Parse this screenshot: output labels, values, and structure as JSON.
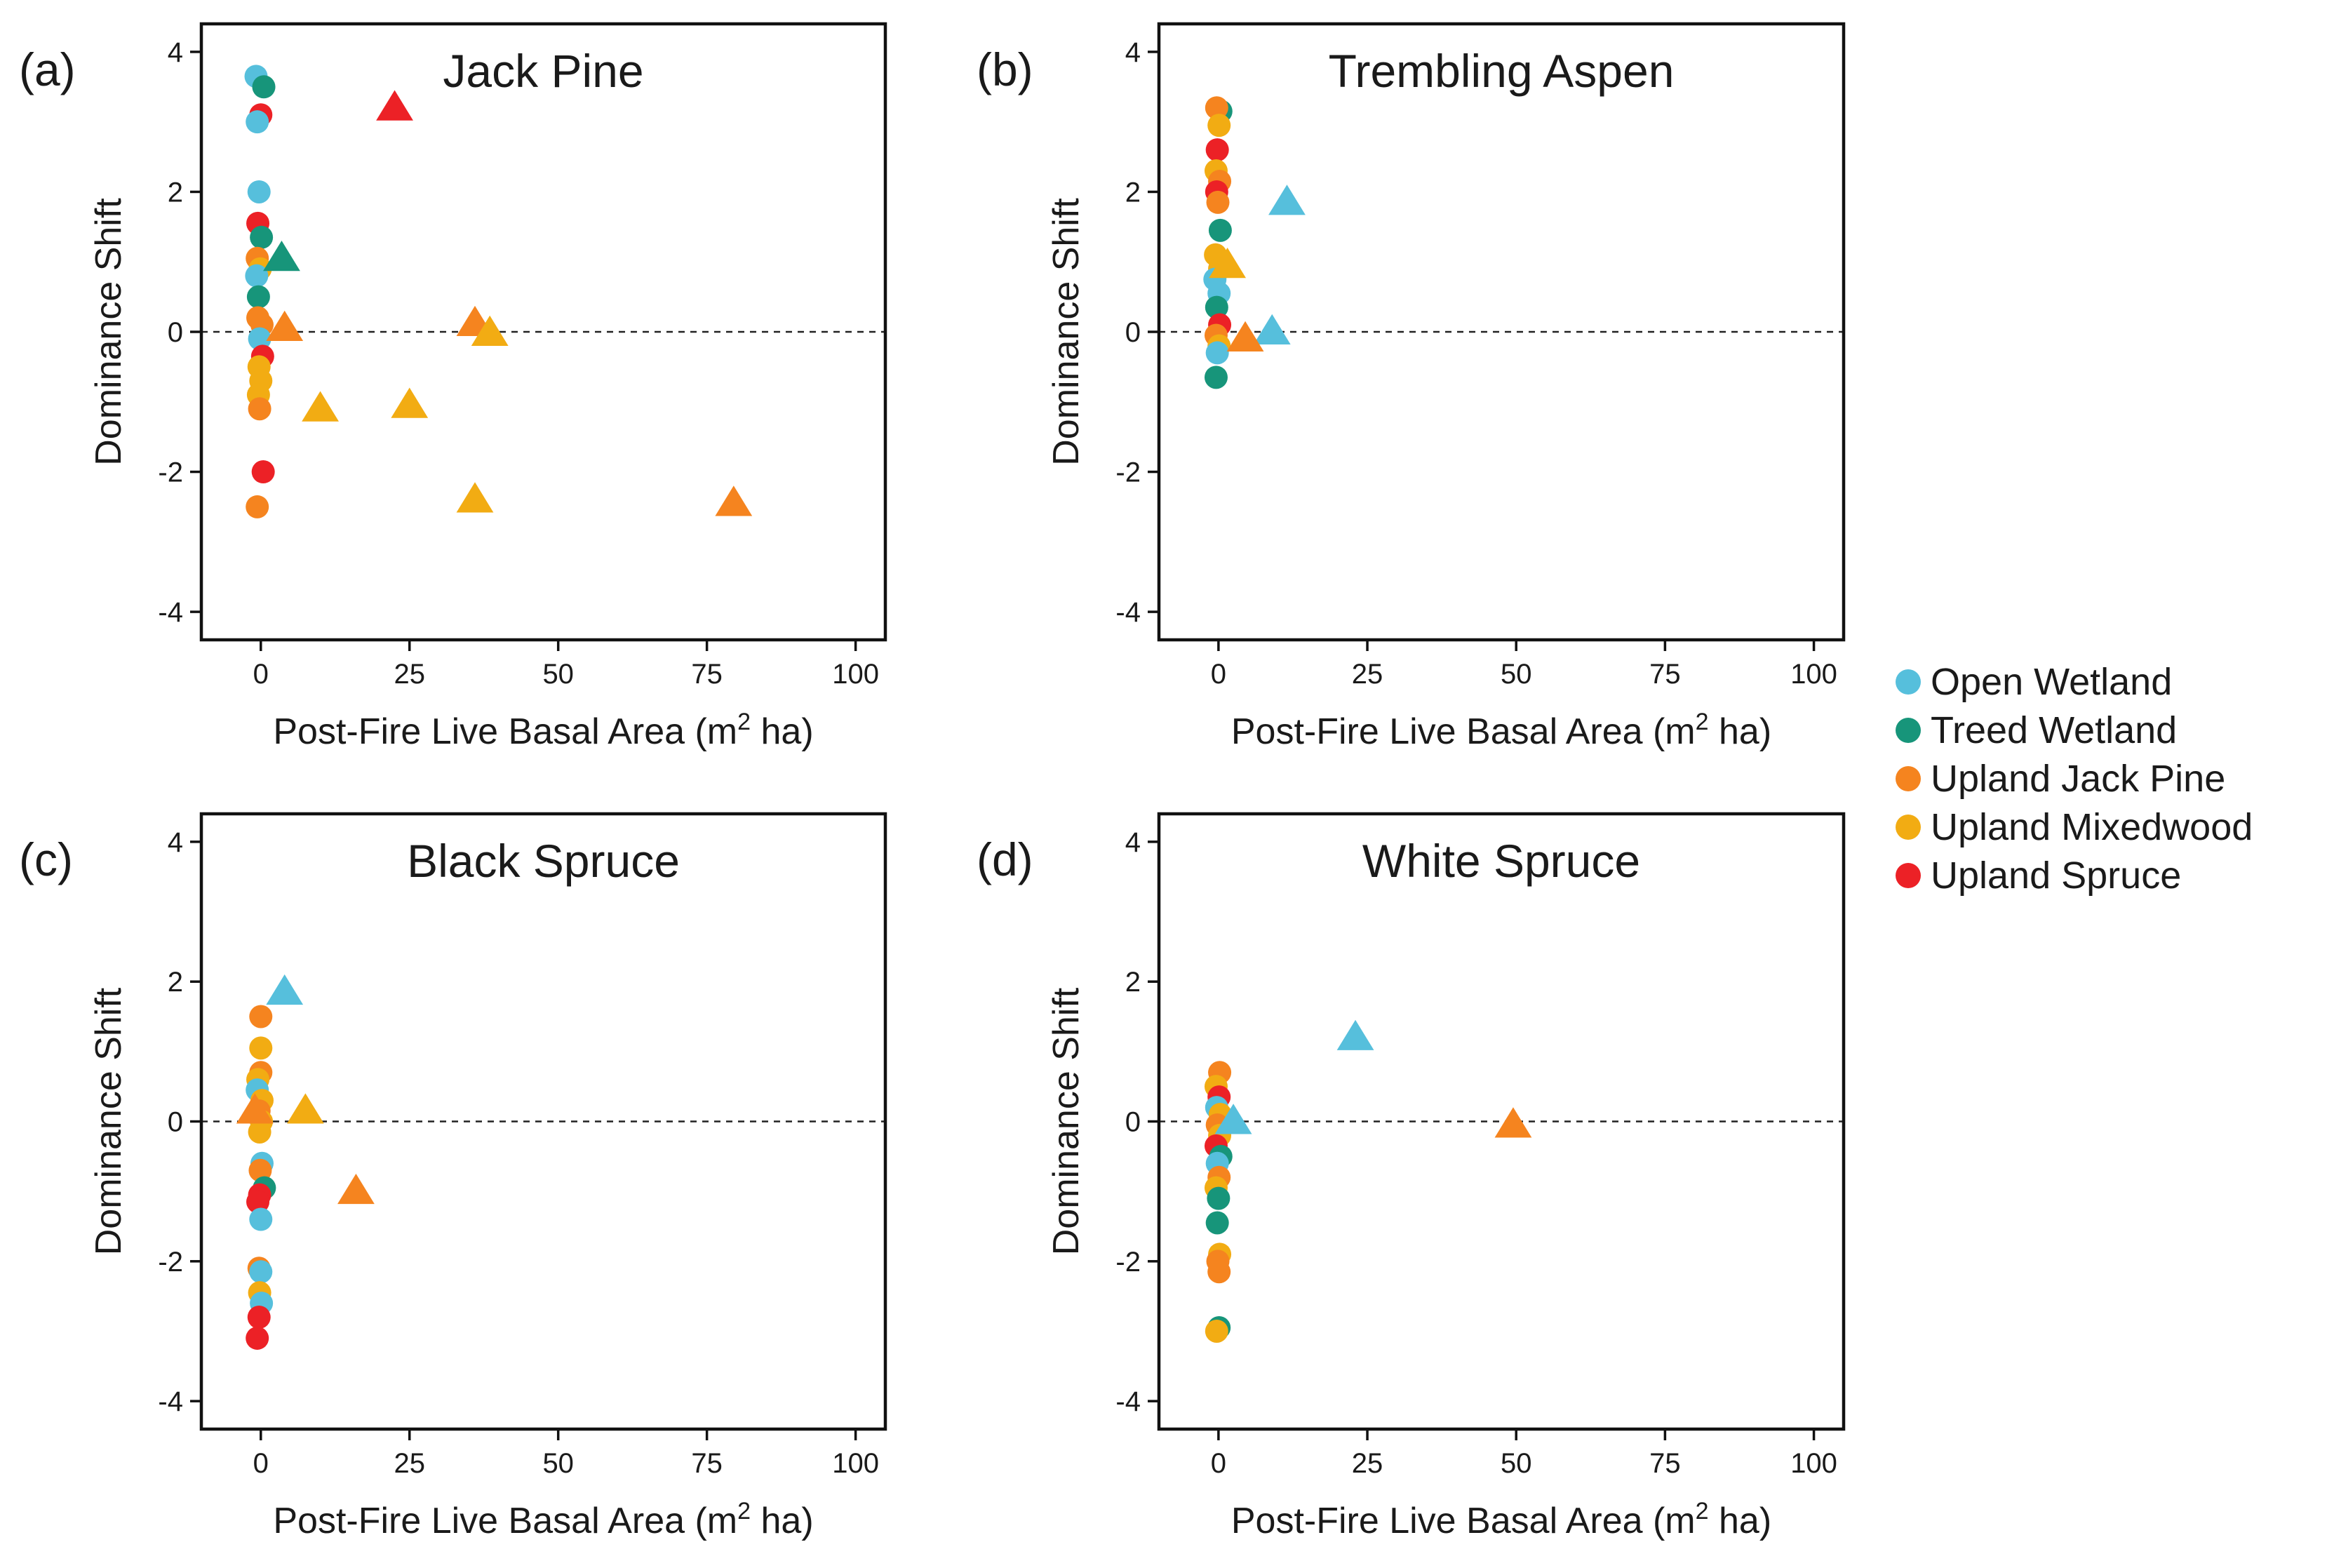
{
  "figure": {
    "legend": [
      {
        "label": "Open Wetland",
        "color": "#56bfdc"
      },
      {
        "label": "Treed Wetland",
        "color": "#17957a"
      },
      {
        "label": "Upland Jack Pine",
        "color": "#f5841f"
      },
      {
        "label": "Upland Mixedwood",
        "color": "#f2ac13"
      },
      {
        "label": "Upland Spruce",
        "color": "#ec2126"
      }
    ]
  },
  "chart_data": [
    {
      "type": "scatter",
      "panel": "(a)",
      "title": "Jack Pine",
      "xlabel": "Post-Fire Live Basal Area (m",
      "xlabel_sup": "2",
      "xlabel_end": " ha)",
      "ylabel": "Dominance Shift",
      "xlim": [
        -10,
        105
      ],
      "ylim": [
        -4.4,
        4.4
      ],
      "xticks": [
        0,
        25,
        50,
        75,
        100
      ],
      "yticks": [
        -4,
        -2,
        0,
        2,
        4
      ],
      "reference_line_y": 0,
      "points": [
        {
          "x": -0.8,
          "y": 3.65,
          "group": 0,
          "shape": "circle"
        },
        {
          "x": 0.5,
          "y": 3.5,
          "group": 1,
          "shape": "circle"
        },
        {
          "x": 0,
          "y": 3.1,
          "group": 4,
          "shape": "circle"
        },
        {
          "x": -0.6,
          "y": 3.0,
          "group": 0,
          "shape": "circle"
        },
        {
          "x": -0.3,
          "y": 2.0,
          "group": 0,
          "shape": "circle"
        },
        {
          "x": -0.5,
          "y": 1.55,
          "group": 4,
          "shape": "circle"
        },
        {
          "x": 0.1,
          "y": 1.35,
          "group": 1,
          "shape": "circle"
        },
        {
          "x": -0.6,
          "y": 1.05,
          "group": 2,
          "shape": "circle"
        },
        {
          "x": -0.1,
          "y": 0.9,
          "group": 3,
          "shape": "circle"
        },
        {
          "x": -0.7,
          "y": 0.8,
          "group": 0,
          "shape": "circle"
        },
        {
          "x": -0.4,
          "y": 0.5,
          "group": 1,
          "shape": "circle"
        },
        {
          "x": -0.5,
          "y": 0.2,
          "group": 2,
          "shape": "circle"
        },
        {
          "x": 0.2,
          "y": 0.1,
          "group": 2,
          "shape": "circle"
        },
        {
          "x": -0.2,
          "y": -0.1,
          "group": 0,
          "shape": "circle"
        },
        {
          "x": 0.3,
          "y": -0.35,
          "group": 4,
          "shape": "circle"
        },
        {
          "x": -0.3,
          "y": -0.5,
          "group": 3,
          "shape": "circle"
        },
        {
          "x": 0,
          "y": -0.7,
          "group": 3,
          "shape": "circle"
        },
        {
          "x": -0.4,
          "y": -0.9,
          "group": 3,
          "shape": "circle"
        },
        {
          "x": -0.2,
          "y": -1.1,
          "group": 2,
          "shape": "circle"
        },
        {
          "x": 0.4,
          "y": -2.0,
          "group": 4,
          "shape": "circle"
        },
        {
          "x": -0.6,
          "y": -2.5,
          "group": 2,
          "shape": "circle"
        },
        {
          "x": 22.5,
          "y": 3.2,
          "group": 4,
          "shape": "triangle"
        },
        {
          "x": 3.5,
          "y": 1.05,
          "group": 1,
          "shape": "triangle"
        },
        {
          "x": 4,
          "y": 0.05,
          "group": 2,
          "shape": "triangle"
        },
        {
          "x": 36,
          "y": 0.12,
          "group": 2,
          "shape": "triangle"
        },
        {
          "x": 38.5,
          "y": -0.02,
          "group": 3,
          "shape": "triangle"
        },
        {
          "x": 10,
          "y": -1.1,
          "group": 3,
          "shape": "triangle"
        },
        {
          "x": 25,
          "y": -1.05,
          "group": 3,
          "shape": "triangle"
        },
        {
          "x": 36,
          "y": -2.4,
          "group": 3,
          "shape": "triangle"
        },
        {
          "x": 79.5,
          "y": -2.45,
          "group": 2,
          "shape": "triangle"
        }
      ]
    },
    {
      "type": "scatter",
      "panel": "(b)",
      "title": "Trembling Aspen",
      "xlabel": "Post-Fire Live Basal Area (m",
      "xlabel_sup": "2",
      "xlabel_end": " ha)",
      "ylabel": "Dominance Shift",
      "xlim": [
        -10,
        105
      ],
      "ylim": [
        -4.4,
        4.4
      ],
      "xticks": [
        0,
        25,
        50,
        75,
        100
      ],
      "yticks": [
        -4,
        -2,
        0,
        2,
        4
      ],
      "reference_line_y": 0,
      "points": [
        {
          "x": 0.4,
          "y": 3.15,
          "group": 1,
          "shape": "circle"
        },
        {
          "x": -0.3,
          "y": 3.2,
          "group": 2,
          "shape": "circle"
        },
        {
          "x": 0.1,
          "y": 2.95,
          "group": 3,
          "shape": "circle"
        },
        {
          "x": -0.2,
          "y": 2.6,
          "group": 4,
          "shape": "circle"
        },
        {
          "x": -0.4,
          "y": 2.3,
          "group": 3,
          "shape": "circle"
        },
        {
          "x": 0.2,
          "y": 2.15,
          "group": 2,
          "shape": "circle"
        },
        {
          "x": -0.3,
          "y": 2.0,
          "group": 4,
          "shape": "circle"
        },
        {
          "x": -0.1,
          "y": 1.85,
          "group": 2,
          "shape": "circle"
        },
        {
          "x": 0.3,
          "y": 1.45,
          "group": 1,
          "shape": "circle"
        },
        {
          "x": -0.5,
          "y": 1.1,
          "group": 3,
          "shape": "circle"
        },
        {
          "x": 0.2,
          "y": 0.9,
          "group": 3,
          "shape": "circle"
        },
        {
          "x": -0.6,
          "y": 0.75,
          "group": 0,
          "shape": "circle"
        },
        {
          "x": 0.1,
          "y": 0.55,
          "group": 0,
          "shape": "circle"
        },
        {
          "x": -0.3,
          "y": 0.35,
          "group": 1,
          "shape": "circle"
        },
        {
          "x": 0.2,
          "y": 0.1,
          "group": 4,
          "shape": "circle"
        },
        {
          "x": -0.4,
          "y": -0.05,
          "group": 2,
          "shape": "circle"
        },
        {
          "x": 0.1,
          "y": -0.2,
          "group": 3,
          "shape": "circle"
        },
        {
          "x": -0.2,
          "y": -0.3,
          "group": 0,
          "shape": "circle"
        },
        {
          "x": -0.4,
          "y": -0.65,
          "group": 1,
          "shape": "circle"
        },
        {
          "x": 11.5,
          "y": 1.85,
          "group": 0,
          "shape": "triangle"
        },
        {
          "x": 1.5,
          "y": 0.95,
          "group": 3,
          "shape": "triangle"
        },
        {
          "x": 9,
          "y": 0.0,
          "group": 0,
          "shape": "triangle"
        },
        {
          "x": 4.5,
          "y": -0.1,
          "group": 2,
          "shape": "triangle"
        }
      ]
    },
    {
      "type": "scatter",
      "panel": "(c)",
      "title": "Black Spruce",
      "xlabel": "Post-Fire Live Basal Area (m",
      "xlabel_sup": "2",
      "xlabel_end": " ha)",
      "ylabel": "Dominance Shift",
      "xlim": [
        -10,
        105
      ],
      "ylim": [
        -4.4,
        4.4
      ],
      "xticks": [
        0,
        25,
        50,
        75,
        100
      ],
      "yticks": [
        -4,
        -2,
        0,
        2,
        4
      ],
      "reference_line_y": 0,
      "points": [
        {
          "x": 0,
          "y": 1.5,
          "group": 2,
          "shape": "circle"
        },
        {
          "x": 0,
          "y": 1.05,
          "group": 3,
          "shape": "circle"
        },
        {
          "x": 0,
          "y": 0.7,
          "group": 2,
          "shape": "circle"
        },
        {
          "x": -0.5,
          "y": 0.6,
          "group": 3,
          "shape": "circle"
        },
        {
          "x": -0.6,
          "y": 0.45,
          "group": 0,
          "shape": "circle"
        },
        {
          "x": 0.2,
          "y": 0.3,
          "group": 3,
          "shape": "circle"
        },
        {
          "x": -0.3,
          "y": 0.15,
          "group": 2,
          "shape": "circle"
        },
        {
          "x": 0.1,
          "y": 0.0,
          "group": 3,
          "shape": "circle"
        },
        {
          "x": -0.2,
          "y": -0.15,
          "group": 3,
          "shape": "circle"
        },
        {
          "x": 0.2,
          "y": -0.6,
          "group": 0,
          "shape": "circle"
        },
        {
          "x": -0.1,
          "y": -0.7,
          "group": 2,
          "shape": "circle"
        },
        {
          "x": 0.6,
          "y": -0.95,
          "group": 1,
          "shape": "circle"
        },
        {
          "x": -0.2,
          "y": -1.05,
          "group": 4,
          "shape": "circle"
        },
        {
          "x": -0.5,
          "y": -1.15,
          "group": 4,
          "shape": "circle"
        },
        {
          "x": 0,
          "y": -1.4,
          "group": 0,
          "shape": "circle"
        },
        {
          "x": -0.3,
          "y": -2.1,
          "group": 2,
          "shape": "circle"
        },
        {
          "x": 0,
          "y": -2.15,
          "group": 0,
          "shape": "circle"
        },
        {
          "x": -0.2,
          "y": -2.45,
          "group": 3,
          "shape": "circle"
        },
        {
          "x": 0.1,
          "y": -2.6,
          "group": 0,
          "shape": "circle"
        },
        {
          "x": -0.3,
          "y": -2.8,
          "group": 4,
          "shape": "circle"
        },
        {
          "x": -0.6,
          "y": -3.1,
          "group": 4,
          "shape": "circle"
        },
        {
          "x": 4,
          "y": 1.85,
          "group": 0,
          "shape": "triangle"
        },
        {
          "x": -1,
          "y": 0.15,
          "group": 2,
          "shape": "triangle"
        },
        {
          "x": 7.5,
          "y": 0.15,
          "group": 3,
          "shape": "triangle"
        },
        {
          "x": 16,
          "y": -1.0,
          "group": 2,
          "shape": "triangle"
        }
      ]
    },
    {
      "type": "scatter",
      "panel": "(d)",
      "title": "White Spruce",
      "xlabel": "Post-Fire Live Basal Area (m",
      "xlabel_sup": "2",
      "xlabel_end": " ha)",
      "ylabel": "Dominance Shift",
      "xlim": [
        -10,
        105
      ],
      "ylim": [
        -4.4,
        4.4
      ],
      "xticks": [
        0,
        25,
        50,
        75,
        100
      ],
      "yticks": [
        -4,
        -2,
        0,
        2,
        4
      ],
      "reference_line_y": 0,
      "points": [
        {
          "x": 0.2,
          "y": 0.7,
          "group": 2,
          "shape": "circle"
        },
        {
          "x": -0.4,
          "y": 0.5,
          "group": 3,
          "shape": "circle"
        },
        {
          "x": 0.1,
          "y": 0.35,
          "group": 4,
          "shape": "circle"
        },
        {
          "x": -0.3,
          "y": 0.2,
          "group": 0,
          "shape": "circle"
        },
        {
          "x": 0.3,
          "y": 0.1,
          "group": 3,
          "shape": "circle"
        },
        {
          "x": -0.2,
          "y": -0.05,
          "group": 2,
          "shape": "circle"
        },
        {
          "x": 0.2,
          "y": -0.2,
          "group": 3,
          "shape": "circle"
        },
        {
          "x": -0.4,
          "y": -0.35,
          "group": 4,
          "shape": "circle"
        },
        {
          "x": 0.4,
          "y": -0.5,
          "group": 1,
          "shape": "circle"
        },
        {
          "x": -0.2,
          "y": -0.6,
          "group": 0,
          "shape": "circle"
        },
        {
          "x": 0.1,
          "y": -0.8,
          "group": 2,
          "shape": "circle"
        },
        {
          "x": -0.4,
          "y": -0.95,
          "group": 3,
          "shape": "circle"
        },
        {
          "x": 0,
          "y": -1.1,
          "group": 1,
          "shape": "circle"
        },
        {
          "x": -0.2,
          "y": -1.45,
          "group": 1,
          "shape": "circle"
        },
        {
          "x": 0.2,
          "y": -1.9,
          "group": 3,
          "shape": "circle"
        },
        {
          "x": -0.1,
          "y": -2.0,
          "group": 2,
          "shape": "circle"
        },
        {
          "x": 0.1,
          "y": -2.15,
          "group": 2,
          "shape": "circle"
        },
        {
          "x": 0.1,
          "y": -2.95,
          "group": 1,
          "shape": "circle"
        },
        {
          "x": -0.3,
          "y": -3.0,
          "group": 3,
          "shape": "circle"
        },
        {
          "x": 23,
          "y": 1.2,
          "group": 0,
          "shape": "triangle"
        },
        {
          "x": 2.5,
          "y": 0.0,
          "group": 0,
          "shape": "triangle"
        },
        {
          "x": 49.5,
          "y": -0.05,
          "group": 2,
          "shape": "triangle"
        }
      ]
    }
  ]
}
